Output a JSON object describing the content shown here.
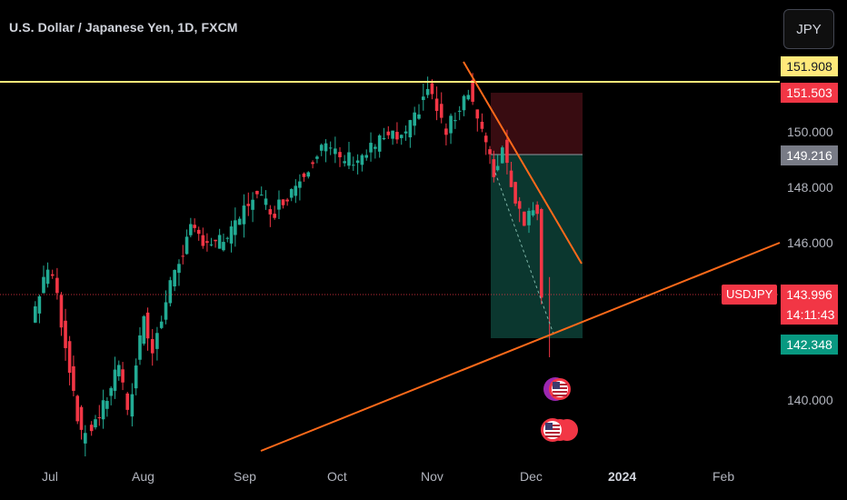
{
  "header": {
    "title": "U.S. Dollar / Japanese Yen, 1D, FXCM",
    "currency_button": "JPY"
  },
  "price_scale": {
    "ticks": [
      "150.000",
      "148.000",
      "146.000",
      "140.000"
    ],
    "badges": {
      "resistance": "151.908",
      "stop": "151.503",
      "entry": "149.216",
      "last": "143.996",
      "countdown": "14:11:43",
      "target": "142.348"
    },
    "ticker": "USDJPY"
  },
  "time_scale": {
    "ticks": [
      "Jul",
      "Aug",
      "Sep",
      "Oct",
      "Nov",
      "Dec",
      "2024",
      "Feb"
    ]
  },
  "colors": {
    "up": "#22ab94",
    "down": "#f23645",
    "resistance": "#ffe97a",
    "trendline": "#ff6a1a",
    "stop_zone": "#3b0d12",
    "target_zone": "#0c3a32",
    "entry_badge": "#787b86",
    "target_badge": "#089981"
  },
  "chart_data": {
    "type": "candlestick",
    "symbol": "USDJPY",
    "interval": "1D",
    "source": "FXCM",
    "last_price": 143.996,
    "y_ticks": [
      150.0,
      148.0,
      146.0,
      140.0
    ],
    "resistance_level": 151.908,
    "position": {
      "side": "short",
      "entry": 149.216,
      "stop": 151.503,
      "target": 142.348
    },
    "close_path": [
      {
        "x": "Jun 26",
        "close": 142.9
      },
      {
        "x": "Jun 30",
        "close": 144.6
      },
      {
        "x": "Jul 3",
        "close": 144.7
      },
      {
        "x": "Jul 7",
        "close": 142.1
      },
      {
        "x": "Jul 12",
        "close": 138.6
      },
      {
        "x": "Jul 14",
        "close": 138.8
      },
      {
        "x": "Jul 19",
        "close": 139.7
      },
      {
        "x": "Jul 24",
        "close": 141.4
      },
      {
        "x": "Jul 27",
        "close": 139.4
      },
      {
        "x": "Aug 1",
        "close": 143.3
      },
      {
        "x": "Aug 4",
        "close": 141.8
      },
      {
        "x": "Aug 11",
        "close": 144.9
      },
      {
        "x": "Aug 16",
        "close": 146.3
      },
      {
        "x": "Aug 24",
        "close": 145.8
      },
      {
        "x": "Aug 29",
        "close": 146.2
      },
      {
        "x": "Sep 5",
        "close": 147.7
      },
      {
        "x": "Sep 12",
        "close": 147.1
      },
      {
        "x": "Sep 20",
        "close": 148.3
      },
      {
        "x": "Sep 27",
        "close": 149.6
      },
      {
        "x": "Oct 3",
        "close": 149.0
      },
      {
        "x": "Oct 10",
        "close": 149.1
      },
      {
        "x": "Oct 17",
        "close": 149.8
      },
      {
        "x": "Oct 24",
        "close": 149.8
      },
      {
        "x": "Oct 31",
        "close": 151.7
      },
      {
        "x": "Nov 6",
        "close": 150.0
      },
      {
        "x": "Nov 13",
        "close": 151.7
      },
      {
        "x": "Nov 16",
        "close": 150.6
      },
      {
        "x": "Nov 21",
        "close": 148.4
      },
      {
        "x": "Nov 24",
        "close": 149.5
      },
      {
        "x": "Nov 28",
        "close": 147.5
      },
      {
        "x": "Dec 1",
        "close": 146.8
      },
      {
        "x": "Dec 5",
        "close": 147.2
      },
      {
        "x": "Dec 7",
        "close": 143.996
      }
    ]
  }
}
